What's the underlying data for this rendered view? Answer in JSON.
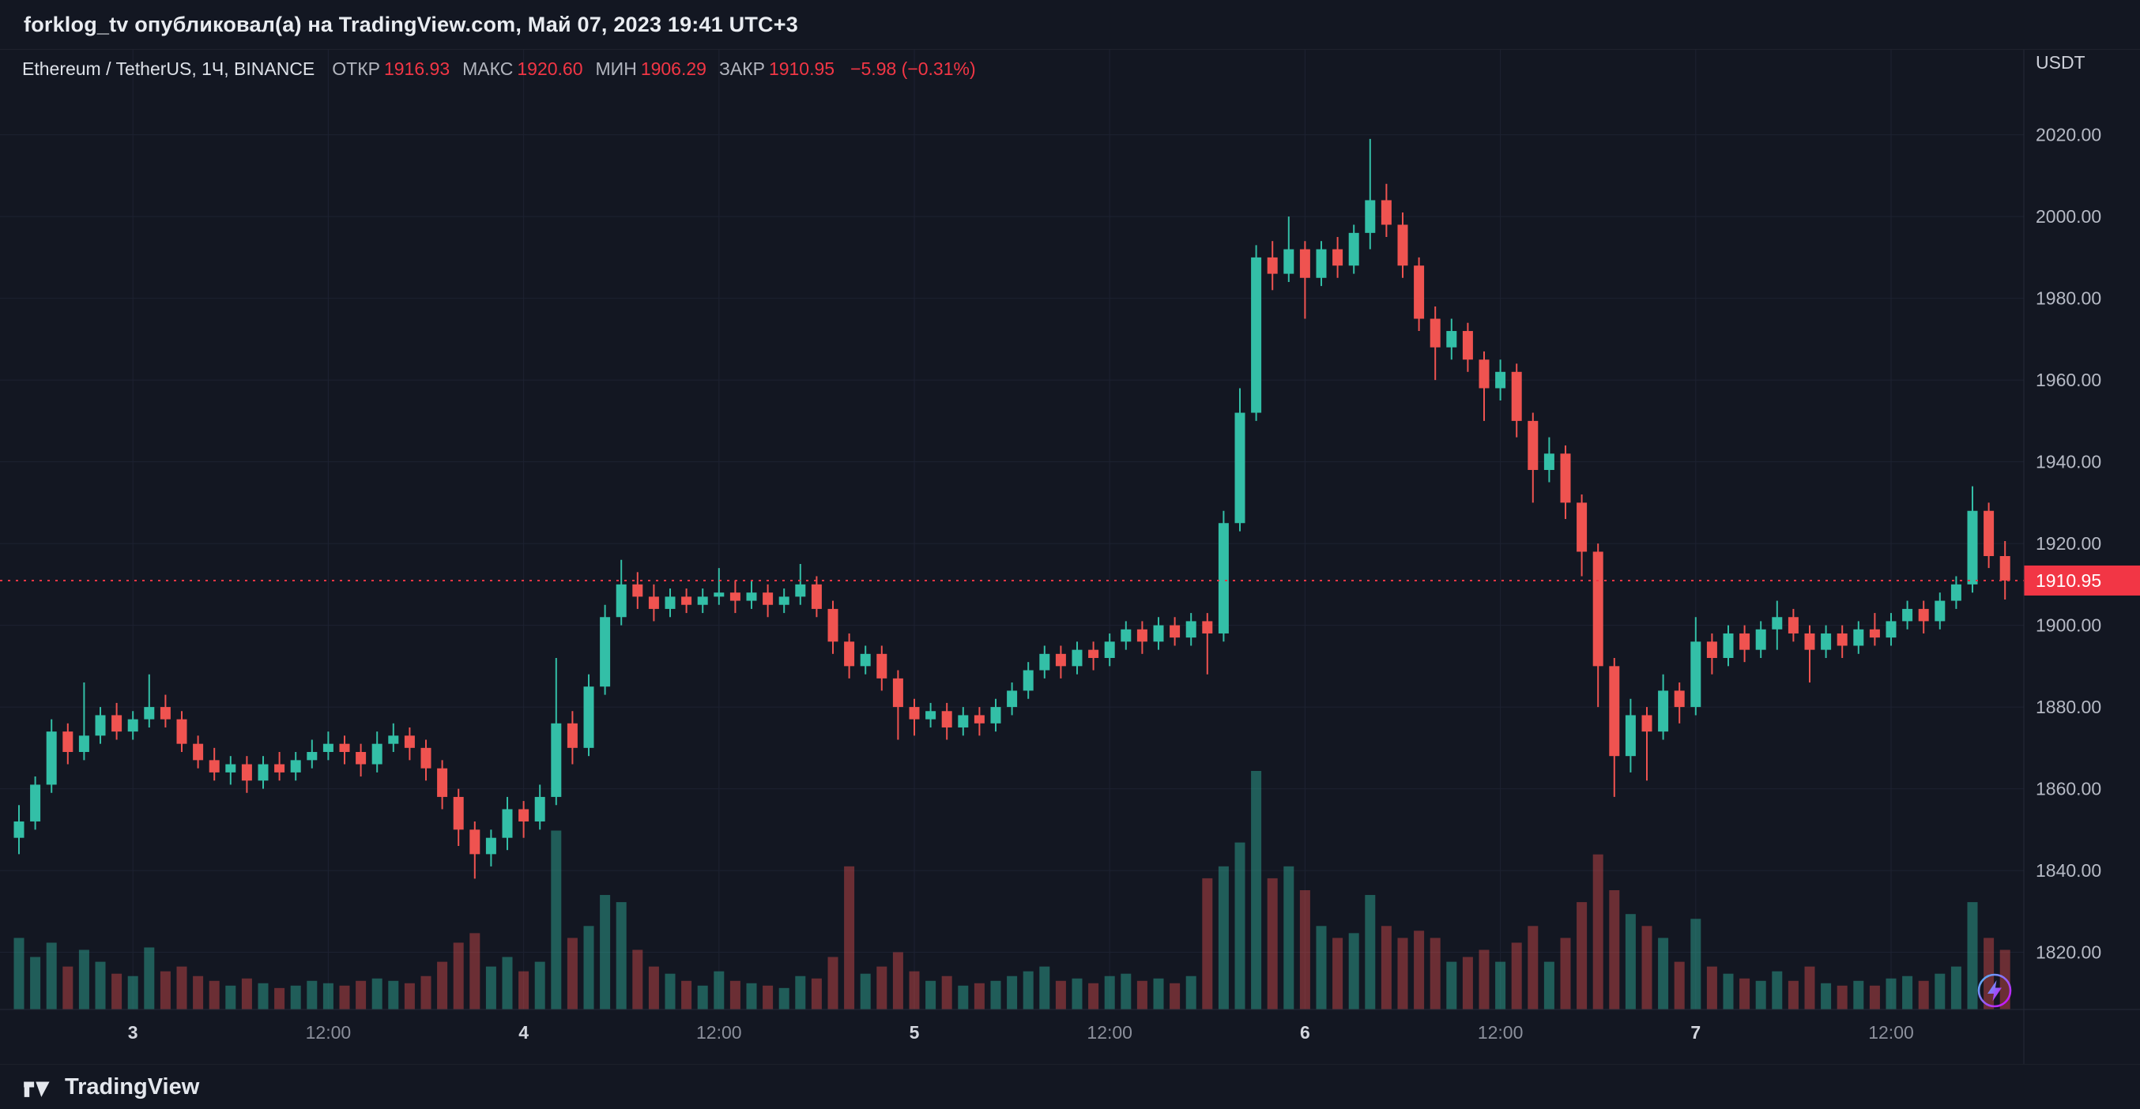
{
  "header": {
    "publication": "forklog_tv опубликовал(а) на TradingView.com, Май 07, 2023 19:41 UTC+3"
  },
  "legend": {
    "symbol_title": "Ethereum / TetherUS, 1Ч, BINANCE",
    "ohlc": [
      {
        "label": "ОТКР",
        "value": "1916.93"
      },
      {
        "label": "МАКС",
        "value": "1920.60"
      },
      {
        "label": "МИН",
        "value": "1906.29"
      },
      {
        "label": "ЗАКР",
        "value": "1910.95"
      }
    ],
    "change": "−5.98 (−0.31%)"
  },
  "price_axis": {
    "currency_label": "USDT",
    "tick_labels": [
      "2020.00",
      "2000.00",
      "1980.00",
      "1960.00",
      "1940.00",
      "1920.00",
      "1900.00",
      "1880.00",
      "1860.00",
      "1840.00",
      "1820.00"
    ],
    "last_price_label": "1910.95"
  },
  "time_axis": {
    "ticks": [
      {
        "i": 7,
        "label": "3",
        "major": true
      },
      {
        "i": 19,
        "label": "12:00",
        "major": false
      },
      {
        "i": 31,
        "label": "4",
        "major": true
      },
      {
        "i": 43,
        "label": "12:00",
        "major": false
      },
      {
        "i": 55,
        "label": "5",
        "major": true
      },
      {
        "i": 67,
        "label": "12:00",
        "major": false
      },
      {
        "i": 79,
        "label": "6",
        "major": true
      },
      {
        "i": 91,
        "label": "12:00",
        "major": false
      },
      {
        "i": 103,
        "label": "7",
        "major": true
      },
      {
        "i": 115,
        "label": "12:00",
        "major": false
      }
    ]
  },
  "footer": {
    "brand": "TradingView"
  },
  "colors": {
    "bg": "#131722",
    "grid": "#1d2231",
    "separator": "#252a38",
    "axis_text": "#b6bac5",
    "axis_text_major": "#d3d6de",
    "axis_text_minor": "#8b8f9b",
    "up": "#33bfa7",
    "down": "#ef5350",
    "accent_red": "#f23645",
    "vol_up": "rgba(51,191,167,0.42)",
    "vol_down": "rgba(239,83,80,0.40)",
    "label_text": "#ffffff"
  },
  "chart_data": {
    "type": "candlestick+volume",
    "title": "Ethereum / TetherUS, 1Ч, BINANCE",
    "interval": "1H",
    "currency": "USDT",
    "ylim": [
      1806,
      2041
    ],
    "price_ticks": [
      2020,
      2000,
      1980,
      1960,
      1940,
      1920,
      1900,
      1880,
      1860,
      1840,
      1820
    ],
    "last_price": 1910.95,
    "last_candle": {
      "open": 1916.93,
      "high": 1920.6,
      "low": 1906.29,
      "close": 1910.95,
      "change": -5.98,
      "change_pct": -0.31
    },
    "candles_format": [
      "open",
      "high",
      "low",
      "close",
      "volume_rel"
    ],
    "candles": [
      [
        1848,
        1856,
        1844,
        1852,
        30
      ],
      [
        1852,
        1863,
        1850,
        1861,
        22
      ],
      [
        1861,
        1877,
        1859,
        1874,
        28
      ],
      [
        1874,
        1876,
        1866,
        1869,
        18
      ],
      [
        1869,
        1886,
        1867,
        1873,
        25
      ],
      [
        1873,
        1880,
        1871,
        1878,
        20
      ],
      [
        1878,
        1881,
        1872,
        1874,
        15
      ],
      [
        1874,
        1879,
        1872,
        1877,
        14
      ],
      [
        1877,
        1888,
        1875,
        1880,
        26
      ],
      [
        1880,
        1883,
        1875,
        1877,
        16
      ],
      [
        1877,
        1879,
        1869,
        1871,
        18
      ],
      [
        1871,
        1873,
        1865,
        1867,
        14
      ],
      [
        1867,
        1870,
        1862,
        1864,
        12
      ],
      [
        1864,
        1868,
        1861,
        1866,
        10
      ],
      [
        1866,
        1868,
        1859,
        1862,
        13
      ],
      [
        1862,
        1868,
        1860,
        1866,
        11
      ],
      [
        1866,
        1869,
        1862,
        1864,
        9
      ],
      [
        1864,
        1869,
        1862,
        1867,
        10
      ],
      [
        1867,
        1872,
        1865,
        1869,
        12
      ],
      [
        1869,
        1874,
        1867,
        1871,
        11
      ],
      [
        1871,
        1873,
        1866,
        1869,
        10
      ],
      [
        1869,
        1871,
        1863,
        1866,
        12
      ],
      [
        1866,
        1874,
        1864,
        1871,
        13
      ],
      [
        1871,
        1876,
        1869,
        1873,
        12
      ],
      [
        1873,
        1875,
        1867,
        1870,
        11
      ],
      [
        1870,
        1872,
        1862,
        1865,
        14
      ],
      [
        1865,
        1867,
        1855,
        1858,
        20
      ],
      [
        1858,
        1860,
        1846,
        1850,
        28
      ],
      [
        1850,
        1852,
        1838,
        1844,
        32
      ],
      [
        1844,
        1850,
        1841,
        1848,
        18
      ],
      [
        1848,
        1858,
        1845,
        1855,
        22
      ],
      [
        1855,
        1857,
        1848,
        1852,
        16
      ],
      [
        1852,
        1861,
        1850,
        1858,
        20
      ],
      [
        1858,
        1892,
        1856,
        1876,
        75
      ],
      [
        1876,
        1879,
        1866,
        1870,
        30
      ],
      [
        1870,
        1888,
        1868,
        1885,
        35
      ],
      [
        1885,
        1905,
        1883,
        1902,
        48
      ],
      [
        1902,
        1916,
        1900,
        1910,
        45
      ],
      [
        1910,
        1913,
        1904,
        1907,
        25
      ],
      [
        1907,
        1910,
        1901,
        1904,
        18
      ],
      [
        1904,
        1909,
        1902,
        1907,
        15
      ],
      [
        1907,
        1909,
        1903,
        1905,
        12
      ],
      [
        1905,
        1909,
        1903,
        1907,
        10
      ],
      [
        1907,
        1914,
        1905,
        1908,
        16
      ],
      [
        1908,
        1911,
        1903,
        1906,
        12
      ],
      [
        1906,
        1911,
        1904,
        1908,
        11
      ],
      [
        1908,
        1910,
        1902,
        1905,
        10
      ],
      [
        1905,
        1909,
        1903,
        1907,
        9
      ],
      [
        1907,
        1915,
        1905,
        1910,
        14
      ],
      [
        1910,
        1912,
        1902,
        1904,
        13
      ],
      [
        1904,
        1906,
        1893,
        1896,
        22
      ],
      [
        1896,
        1898,
        1887,
        1890,
        60
      ],
      [
        1890,
        1895,
        1888,
        1893,
        15
      ],
      [
        1893,
        1895,
        1884,
        1887,
        18
      ],
      [
        1887,
        1889,
        1872,
        1880,
        24
      ],
      [
        1880,
        1882,
        1873,
        1877,
        16
      ],
      [
        1877,
        1881,
        1875,
        1879,
        12
      ],
      [
        1879,
        1881,
        1872,
        1875,
        14
      ],
      [
        1875,
        1880,
        1873,
        1878,
        10
      ],
      [
        1878,
        1880,
        1873,
        1876,
        11
      ],
      [
        1876,
        1882,
        1874,
        1880,
        12
      ],
      [
        1880,
        1886,
        1878,
        1884,
        14
      ],
      [
        1884,
        1891,
        1882,
        1889,
        16
      ],
      [
        1889,
        1895,
        1887,
        1893,
        18
      ],
      [
        1893,
        1895,
        1887,
        1890,
        12
      ],
      [
        1890,
        1896,
        1888,
        1894,
        13
      ],
      [
        1894,
        1896,
        1889,
        1892,
        11
      ],
      [
        1892,
        1898,
        1890,
        1896,
        14
      ],
      [
        1896,
        1901,
        1894,
        1899,
        15
      ],
      [
        1899,
        1901,
        1893,
        1896,
        12
      ],
      [
        1896,
        1902,
        1894,
        1900,
        13
      ],
      [
        1900,
        1902,
        1895,
        1897,
        11
      ],
      [
        1897,
        1903,
        1895,
        1901,
        14
      ],
      [
        1901,
        1903,
        1888,
        1898,
        55
      ],
      [
        1898,
        1928,
        1896,
        1925,
        60
      ],
      [
        1925,
        1958,
        1923,
        1952,
        70
      ],
      [
        1952,
        1993,
        1950,
        1990,
        100
      ],
      [
        1990,
        1994,
        1982,
        1986,
        55
      ],
      [
        1986,
        2000,
        1984,
        1992,
        60
      ],
      [
        1992,
        1994,
        1975,
        1985,
        50
      ],
      [
        1985,
        1994,
        1983,
        1992,
        35
      ],
      [
        1992,
        1995,
        1985,
        1988,
        30
      ],
      [
        1988,
        1998,
        1986,
        1996,
        32
      ],
      [
        1996,
        2019,
        1992,
        2004,
        48
      ],
      [
        2004,
        2008,
        1995,
        1998,
        35
      ],
      [
        1998,
        2001,
        1985,
        1988,
        30
      ],
      [
        1988,
        1990,
        1972,
        1975,
        33
      ],
      [
        1975,
        1978,
        1960,
        1968,
        30
      ],
      [
        1968,
        1975,
        1965,
        1972,
        20
      ],
      [
        1972,
        1974,
        1962,
        1965,
        22
      ],
      [
        1965,
        1967,
        1950,
        1958,
        25
      ],
      [
        1958,
        1965,
        1955,
        1962,
        20
      ],
      [
        1962,
        1964,
        1946,
        1950,
        28
      ],
      [
        1950,
        1952,
        1930,
        1938,
        35
      ],
      [
        1938,
        1946,
        1935,
        1942,
        20
      ],
      [
        1942,
        1944,
        1926,
        1930,
        30
      ],
      [
        1930,
        1932,
        1912,
        1918,
        45
      ],
      [
        1918,
        1920,
        1880,
        1890,
        65
      ],
      [
        1890,
        1892,
        1858,
        1868,
        50
      ],
      [
        1868,
        1882,
        1864,
        1878,
        40
      ],
      [
        1878,
        1880,
        1862,
        1874,
        35
      ],
      [
        1874,
        1888,
        1872,
        1884,
        30
      ],
      [
        1884,
        1886,
        1876,
        1880,
        20
      ],
      [
        1880,
        1902,
        1878,
        1896,
        38
      ],
      [
        1896,
        1898,
        1888,
        1892,
        18
      ],
      [
        1892,
        1900,
        1890,
        1898,
        15
      ],
      [
        1898,
        1900,
        1891,
        1894,
        13
      ],
      [
        1894,
        1901,
        1892,
        1899,
        12
      ],
      [
        1899,
        1906,
        1894,
        1902,
        16
      ],
      [
        1902,
        1904,
        1896,
        1898,
        12
      ],
      [
        1898,
        1900,
        1886,
        1894,
        18
      ],
      [
        1894,
        1900,
        1892,
        1898,
        11
      ],
      [
        1898,
        1900,
        1892,
        1895,
        10
      ],
      [
        1895,
        1901,
        1893,
        1899,
        12
      ],
      [
        1899,
        1903,
        1895,
        1897,
        10
      ],
      [
        1897,
        1903,
        1895,
        1901,
        13
      ],
      [
        1901,
        1906,
        1899,
        1904,
        14
      ],
      [
        1904,
        1906,
        1898,
        1901,
        12
      ],
      [
        1901,
        1908,
        1899,
        1906,
        15
      ],
      [
        1906,
        1912,
        1904,
        1910,
        18
      ],
      [
        1910,
        1934,
        1908,
        1928,
        45
      ],
      [
        1928,
        1930,
        1914,
        1916.93,
        30
      ],
      [
        1916.93,
        1920.6,
        1906.29,
        1910.95,
        25
      ]
    ]
  }
}
